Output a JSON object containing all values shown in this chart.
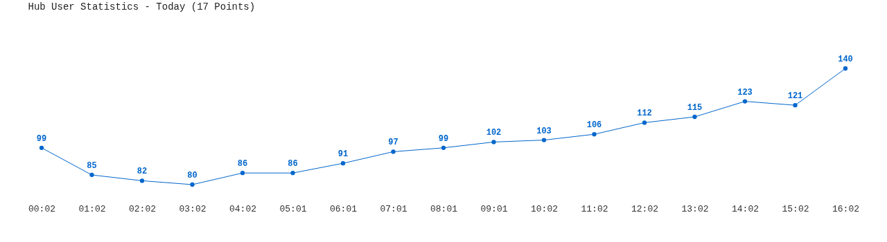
{
  "chart_data": {
    "type": "line",
    "title": "Hub User Statistics - Today (17 Points)",
    "categories": [
      "00:02",
      "01:02",
      "02:02",
      "03:02",
      "04:02",
      "05:01",
      "06:01",
      "07:01",
      "08:01",
      "09:01",
      "10:02",
      "11:02",
      "12:02",
      "13:02",
      "14:02",
      "15:02",
      "16:02"
    ],
    "series": [
      {
        "color": "#0066cc",
        "values": [
          99,
          85,
          82,
          80,
          86,
          86,
          91,
          97,
          99,
          102,
          103,
          106,
          112,
          115,
          123,
          121,
          140
        ]
      }
    ],
    "tick_labels": "x",
    "marker": "circle",
    "line_style": "solid",
    "data_labels": true
  }
}
